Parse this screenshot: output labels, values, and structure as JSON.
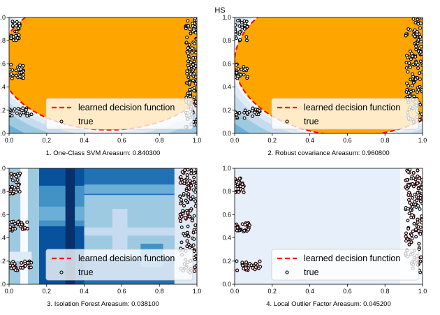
{
  "figure": {
    "suptitle": "HS"
  },
  "colors": {
    "orange": "#FFA500",
    "blues": [
      "#F7FBFF",
      "#DEEBF7",
      "#C6DBEF",
      "#9ECAE1",
      "#6BAED6",
      "#4292C6",
      "#2171B5",
      "#08519C",
      "#08306B"
    ],
    "decision_line": "#FF0000",
    "point_edge": "#000000",
    "point_face": "#FFFFFF"
  },
  "chart_data": [
    {
      "type": "scatter",
      "panel": 1,
      "xlabel": "1. One-Class SVM  Areasum: 0.840300",
      "xlim": [
        0,
        1
      ],
      "ylim": [
        0,
        1
      ],
      "xticks": [
        "0.0",
        "0.2",
        "0.4",
        "0.6",
        "0.8",
        "1.0"
      ],
      "yticks": [
        "0.0",
        "0.2",
        "0.4",
        "0.6",
        "0.8",
        "1.0"
      ],
      "background": "orange filled region inside boundary, blue shading outside",
      "decision_boundary": {
        "center": [
          0.53,
          0.62
        ],
        "radius": [
          0.58,
          0.59
        ]
      },
      "legend": {
        "placement": "lower-right",
        "entries": [
          "learned decision function",
          "true"
        ]
      },
      "true_clusters": [
        {
          "x": [
            0.94,
            1.0
          ],
          "y": [
            0.05,
            1.0
          ]
        },
        {
          "x": [
            0.0,
            0.06
          ],
          "y": [
            0.8,
            0.98
          ]
        },
        {
          "x": [
            0.0,
            0.08
          ],
          "y": [
            0.47,
            0.6
          ]
        },
        {
          "x": [
            0.0,
            0.12
          ],
          "y": [
            0.15,
            0.22
          ]
        }
      ]
    },
    {
      "type": "scatter",
      "panel": 2,
      "xlabel": "2. Robust covariance  Areasum: 0.960800",
      "xlim": [
        0,
        1
      ],
      "ylim": [
        0,
        1
      ],
      "xticks": [
        "0.0",
        "0.2",
        "0.4",
        "0.6",
        "0.8",
        "1.0"
      ],
      "yticks": [
        "0.0",
        "0.2",
        "0.4",
        "0.6",
        "0.8",
        "1.0"
      ],
      "background": "orange filled region inside boundary, blue shading outside",
      "decision_boundary": {
        "center": [
          0.62,
          0.62
        ],
        "radius": [
          0.62,
          0.64
        ]
      },
      "legend": {
        "placement": "lower-right",
        "entries": [
          "learned decision function",
          "true"
        ]
      },
      "true_clusters": [
        {
          "x": [
            0.91,
            1.0
          ],
          "y": [
            0.1,
            1.0
          ]
        },
        {
          "x": [
            0.0,
            0.07
          ],
          "y": [
            0.8,
            0.98
          ]
        },
        {
          "x": [
            0.0,
            0.07
          ],
          "y": [
            0.47,
            0.6
          ]
        },
        {
          "x": [
            0.0,
            0.14
          ],
          "y": [
            0.13,
            0.22
          ]
        }
      ]
    },
    {
      "type": "scatter",
      "panel": 3,
      "xlabel": "3. Isolation Forest  Areasum: 0.038100",
      "xlim": [
        0,
        1
      ],
      "ylim": [
        0,
        1
      ],
      "xticks": [
        "0.0",
        "0.2",
        "0.4",
        "0.6",
        "0.8",
        "1.0"
      ],
      "yticks": [
        "0.0",
        "0.2",
        "0.4",
        "0.6",
        "0.8",
        "1.0"
      ],
      "background": "blue rectangular step regions",
      "legend": {
        "placement": "lower-right",
        "entries": [
          "learned decision function",
          "true"
        ]
      },
      "true_clusters": [
        {
          "x": [
            0.91,
            1.0
          ],
          "y": [
            0.1,
            1.0
          ]
        },
        {
          "x": [
            0.0,
            0.06
          ],
          "y": [
            0.78,
            0.96
          ]
        },
        {
          "x": [
            0.0,
            0.1
          ],
          "y": [
            0.46,
            0.55
          ]
        },
        {
          "x": [
            0.0,
            0.12
          ],
          "y": [
            0.12,
            0.2
          ]
        }
      ]
    },
    {
      "type": "scatter",
      "panel": 4,
      "xlabel": "4. Local Outlier Factor  Areasum: 0.045200",
      "xlim": [
        0,
        1
      ],
      "ylim": [
        0,
        1
      ],
      "xticks": [
        "0.0",
        "0.2",
        "0.4",
        "0.6",
        "0.8",
        "1.0"
      ],
      "yticks": [
        "0.0",
        "0.2",
        "0.4",
        "0.6",
        "0.8",
        "1.0"
      ],
      "background": "very light blue uniform",
      "legend": {
        "placement": "lower-right",
        "entries": [
          "learned decision function",
          "true"
        ]
      },
      "true_clusters": [
        {
          "x": [
            0.91,
            1.0
          ],
          "y": [
            0.1,
            1.0
          ]
        },
        {
          "x": [
            0.0,
            0.05
          ],
          "y": [
            0.78,
            0.92
          ]
        },
        {
          "x": [
            0.0,
            0.08
          ],
          "y": [
            0.45,
            0.53
          ]
        },
        {
          "x": [
            0.0,
            0.14
          ],
          "y": [
            0.12,
            0.2
          ]
        }
      ]
    }
  ]
}
